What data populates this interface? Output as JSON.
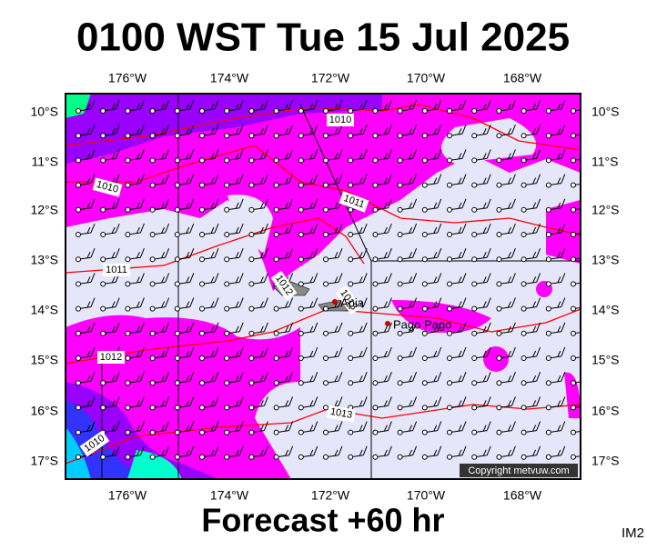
{
  "header": {
    "title": "0100 WST Tue 15 Jul 2025"
  },
  "map": {
    "longitude_labels": [
      "176°W",
      "174°W",
      "172°W",
      "170°W",
      "168°W"
    ],
    "latitude_labels": [
      "10°S",
      "11°S",
      "12°S",
      "13°S",
      "14°S",
      "15°S",
      "16°S",
      "17°S"
    ],
    "isobar_labels": [
      "1010",
      "1011",
      "1010",
      "1011",
      "1012",
      "1013",
      "1012",
      "1013",
      "1010"
    ],
    "places": [
      "Apia",
      "Pago Pago"
    ],
    "copyright": "Copyright metvuw.com"
  },
  "footer": {
    "forecast": "Forecast +60 hr",
    "image_id": "IM2"
  }
}
